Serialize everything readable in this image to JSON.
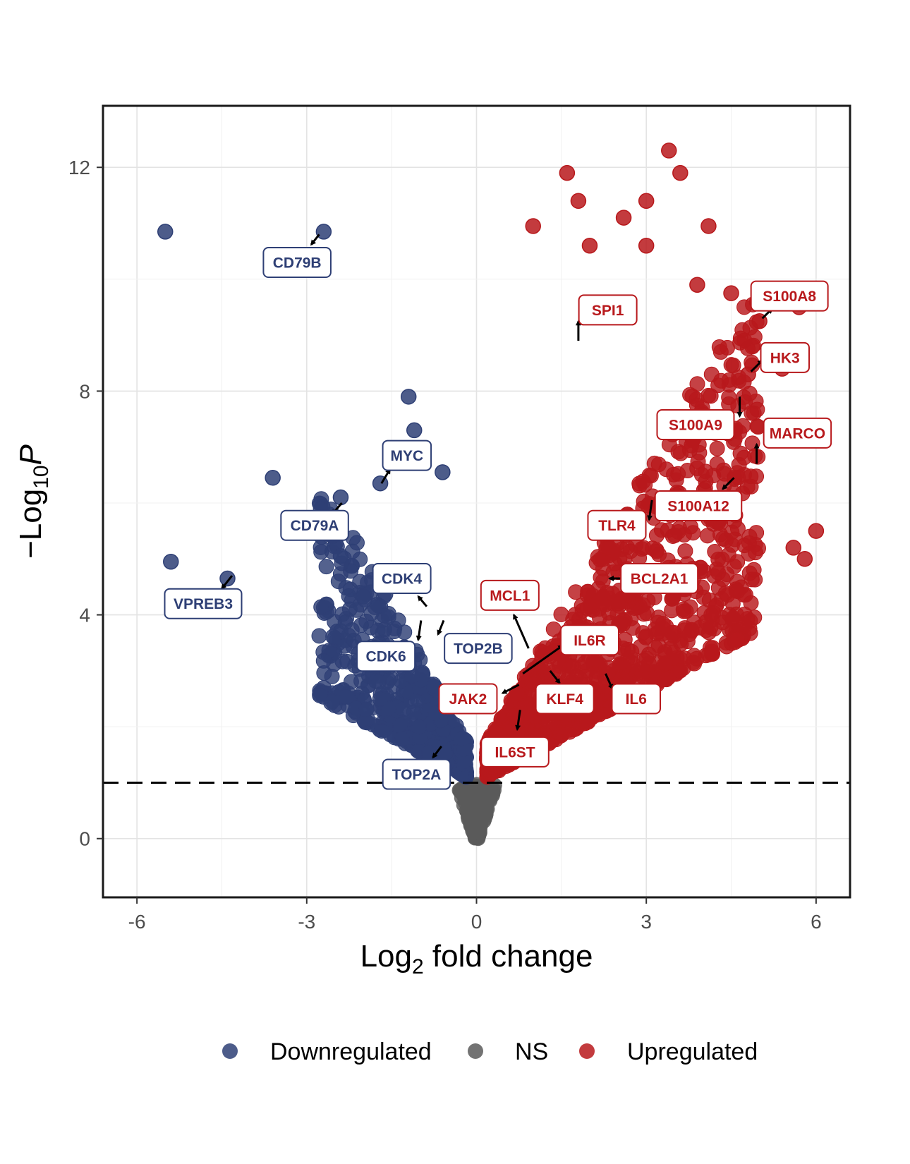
{
  "chart_data": {
    "type": "scatter",
    "subtype": "volcano",
    "xlabel": {
      "base": "Log",
      "sub": "2",
      "rest": " fold change"
    },
    "ylabel": {
      "prefix": "−Log",
      "sub": "10",
      "italic": "P"
    },
    "x_ticks": [
      -6,
      -3,
      0,
      3,
      6
    ],
    "y_ticks": [
      0,
      4,
      8,
      12
    ],
    "xlim": [
      -6.6,
      6.6
    ],
    "ylim": [
      -1.05,
      13.1
    ],
    "threshold_y": 1.0,
    "grid": true,
    "legend": {
      "position": "bottom",
      "entries": [
        {
          "name": "Downregulated",
          "color": "#2e3f75"
        },
        {
          "name": "NS",
          "color": "#5a5a5a"
        },
        {
          "name": "Upregulated",
          "color": "#b8191c"
        }
      ]
    },
    "colors": {
      "down": "#2e3f75",
      "ns": "#5a5a5a",
      "up": "#b8191c"
    },
    "highlighted_points": [
      {
        "group": "down",
        "x": -5.5,
        "y": 10.85
      },
      {
        "group": "down",
        "x": -2.7,
        "y": 10.85
      },
      {
        "group": "down",
        "x": -3.6,
        "y": 6.45
      },
      {
        "group": "down",
        "x": -5.4,
        "y": 4.95
      },
      {
        "group": "down",
        "x": -4.4,
        "y": 4.65
      },
      {
        "group": "down",
        "x": -2.4,
        "y": 6.1
      },
      {
        "group": "down",
        "x": -2.4,
        "y": 5.05
      },
      {
        "group": "down",
        "x": -1.2,
        "y": 7.9
      },
      {
        "group": "down",
        "x": -1.1,
        "y": 7.3
      },
      {
        "group": "down",
        "x": -0.6,
        "y": 6.55
      },
      {
        "group": "down",
        "x": -1.7,
        "y": 6.35
      },
      {
        "group": "up",
        "x": 3.4,
        "y": 12.3
      },
      {
        "group": "up",
        "x": 1.6,
        "y": 11.9
      },
      {
        "group": "up",
        "x": 3.6,
        "y": 11.9
      },
      {
        "group": "up",
        "x": 1.8,
        "y": 11.4
      },
      {
        "group": "up",
        "x": 3.0,
        "y": 11.4
      },
      {
        "group": "up",
        "x": 1.0,
        "y": 10.95
      },
      {
        "group": "up",
        "x": 2.6,
        "y": 11.1
      },
      {
        "group": "up",
        "x": 4.1,
        "y": 10.95
      },
      {
        "group": "up",
        "x": 3.0,
        "y": 10.6
      },
      {
        "group": "up",
        "x": 2.0,
        "y": 10.6
      },
      {
        "group": "up",
        "x": 3.9,
        "y": 9.9
      },
      {
        "group": "up",
        "x": 4.5,
        "y": 9.75
      },
      {
        "group": "up",
        "x": 5.7,
        "y": 9.5
      },
      {
        "group": "up",
        "x": 5.0,
        "y": 9.25
      },
      {
        "group": "up",
        "x": 5.4,
        "y": 8.4
      },
      {
        "group": "up",
        "x": 4.8,
        "y": 8.3
      },
      {
        "group": "up",
        "x": 6.0,
        "y": 5.5
      },
      {
        "group": "up",
        "x": 5.8,
        "y": 5.0
      },
      {
        "group": "up",
        "x": 4.6,
        "y": 3.55
      },
      {
        "group": "up",
        "x": 5.6,
        "y": 5.2
      }
    ],
    "labels": [
      {
        "gene": "CD79B",
        "group": "down",
        "lx": -3.17,
        "ly": 10.3,
        "ax": -2.78,
        "ay": 10.8,
        "bx": -2.92,
        "by": 10.62
      },
      {
        "gene": "MYC",
        "group": "down",
        "lx": -1.23,
        "ly": 6.85,
        "ax": -1.68,
        "ay": 6.35,
        "bx": -1.53,
        "by": 6.6
      },
      {
        "gene": "CD79A",
        "group": "down",
        "lx": -2.86,
        "ly": 5.6,
        "ax": -2.38,
        "ay": 6.0,
        "bx": -2.55,
        "by": 5.8
      },
      {
        "gene": "CDK4",
        "group": "down",
        "lx": -1.32,
        "ly": 4.65,
        "ax": -0.88,
        "ay": 4.15,
        "bx": -1.03,
        "by": 4.33
      },
      {
        "gene": "VPREB3",
        "group": "down",
        "lx": -4.83,
        "ly": 4.2,
        "ax": -4.32,
        "ay": 4.7,
        "bx": -4.5,
        "by": 4.47
      },
      {
        "gene": "TOP2B",
        "group": "down",
        "lx": 0.03,
        "ly": 3.4,
        "ax": -0.58,
        "ay": 3.9,
        "bx": -0.68,
        "by": 3.65
      },
      {
        "gene": "CDK6",
        "group": "down",
        "lx": -1.6,
        "ly": 3.26,
        "ax": -0.98,
        "ay": 3.9,
        "bx": -1.03,
        "by": 3.55
      },
      {
        "gene": "TOP2A",
        "group": "down",
        "lx": -1.06,
        "ly": 1.15,
        "ax": -0.62,
        "ay": 1.65,
        "bx": -0.77,
        "by": 1.45
      },
      {
        "gene": "SPI1",
        "group": "up",
        "lx": 2.32,
        "ly": 9.45,
        "ax": 1.8,
        "ay": 8.9,
        "bx": 1.8,
        "by": 9.25
      },
      {
        "gene": "S100A8",
        "group": "up",
        "lx": 5.53,
        "ly": 9.7,
        "ax": 5.05,
        "ay": 9.3,
        "bx": 5.22,
        "by": 9.47
      },
      {
        "gene": "HK3",
        "group": "up",
        "lx": 5.45,
        "ly": 8.6,
        "ax": 4.85,
        "ay": 8.35,
        "bx": 5.05,
        "by": 8.55
      },
      {
        "gene": "S100A9",
        "group": "up",
        "lx": 3.87,
        "ly": 7.4,
        "ax": 4.65,
        "ay": 7.9,
        "bx": 4.65,
        "by": 7.55
      },
      {
        "gene": "MARCO",
        "group": "up",
        "lx": 5.67,
        "ly": 7.25,
        "ax": 4.95,
        "ay": 6.7,
        "bx": 4.95,
        "by": 7.05
      },
      {
        "gene": "S100A12",
        "group": "up",
        "lx": 3.92,
        "ly": 5.95,
        "ax": 4.55,
        "ay": 6.45,
        "bx": 4.35,
        "by": 6.25
      },
      {
        "gene": "TLR4",
        "group": "up",
        "lx": 2.48,
        "ly": 5.6,
        "ax": 3.1,
        "ay": 6.05,
        "bx": 3.05,
        "by": 5.7
      },
      {
        "gene": "BCL2A1",
        "group": "up",
        "lx": 3.23,
        "ly": 4.65,
        "ax": 2.55,
        "ay": 4.65,
        "bx": 2.35,
        "by": 4.65
      },
      {
        "gene": "MCL1",
        "group": "up",
        "lx": 0.59,
        "ly": 4.35,
        "ax": 0.92,
        "ay": 3.4,
        "bx": 0.66,
        "by": 4.0
      },
      {
        "gene": "IL6R",
        "group": "up",
        "lx": 2.0,
        "ly": 3.55,
        "ax": 0.82,
        "ay": 2.95,
        "bx": 1.52,
        "by": 3.45
      },
      {
        "gene": "JAK2",
        "group": "up",
        "lx": -0.15,
        "ly": 2.5,
        "ax": 0.75,
        "ay": 2.75,
        "bx": 0.46,
        "by": 2.6
      },
      {
        "gene": "KLF4",
        "group": "up",
        "lx": 1.56,
        "ly": 2.5,
        "ax": 1.3,
        "ay": 3.0,
        "bx": 1.47,
        "by": 2.78
      },
      {
        "gene": "IL6",
        "group": "up",
        "lx": 2.82,
        "ly": 2.5,
        "ax": 2.28,
        "ay": 2.95,
        "bx": 2.4,
        "by": 2.68
      },
      {
        "gene": "IL6ST",
        "group": "up",
        "lx": 0.68,
        "ly": 1.55,
        "ax": 0.77,
        "ay": 2.3,
        "bx": 0.72,
        "by": 1.95
      }
    ]
  }
}
